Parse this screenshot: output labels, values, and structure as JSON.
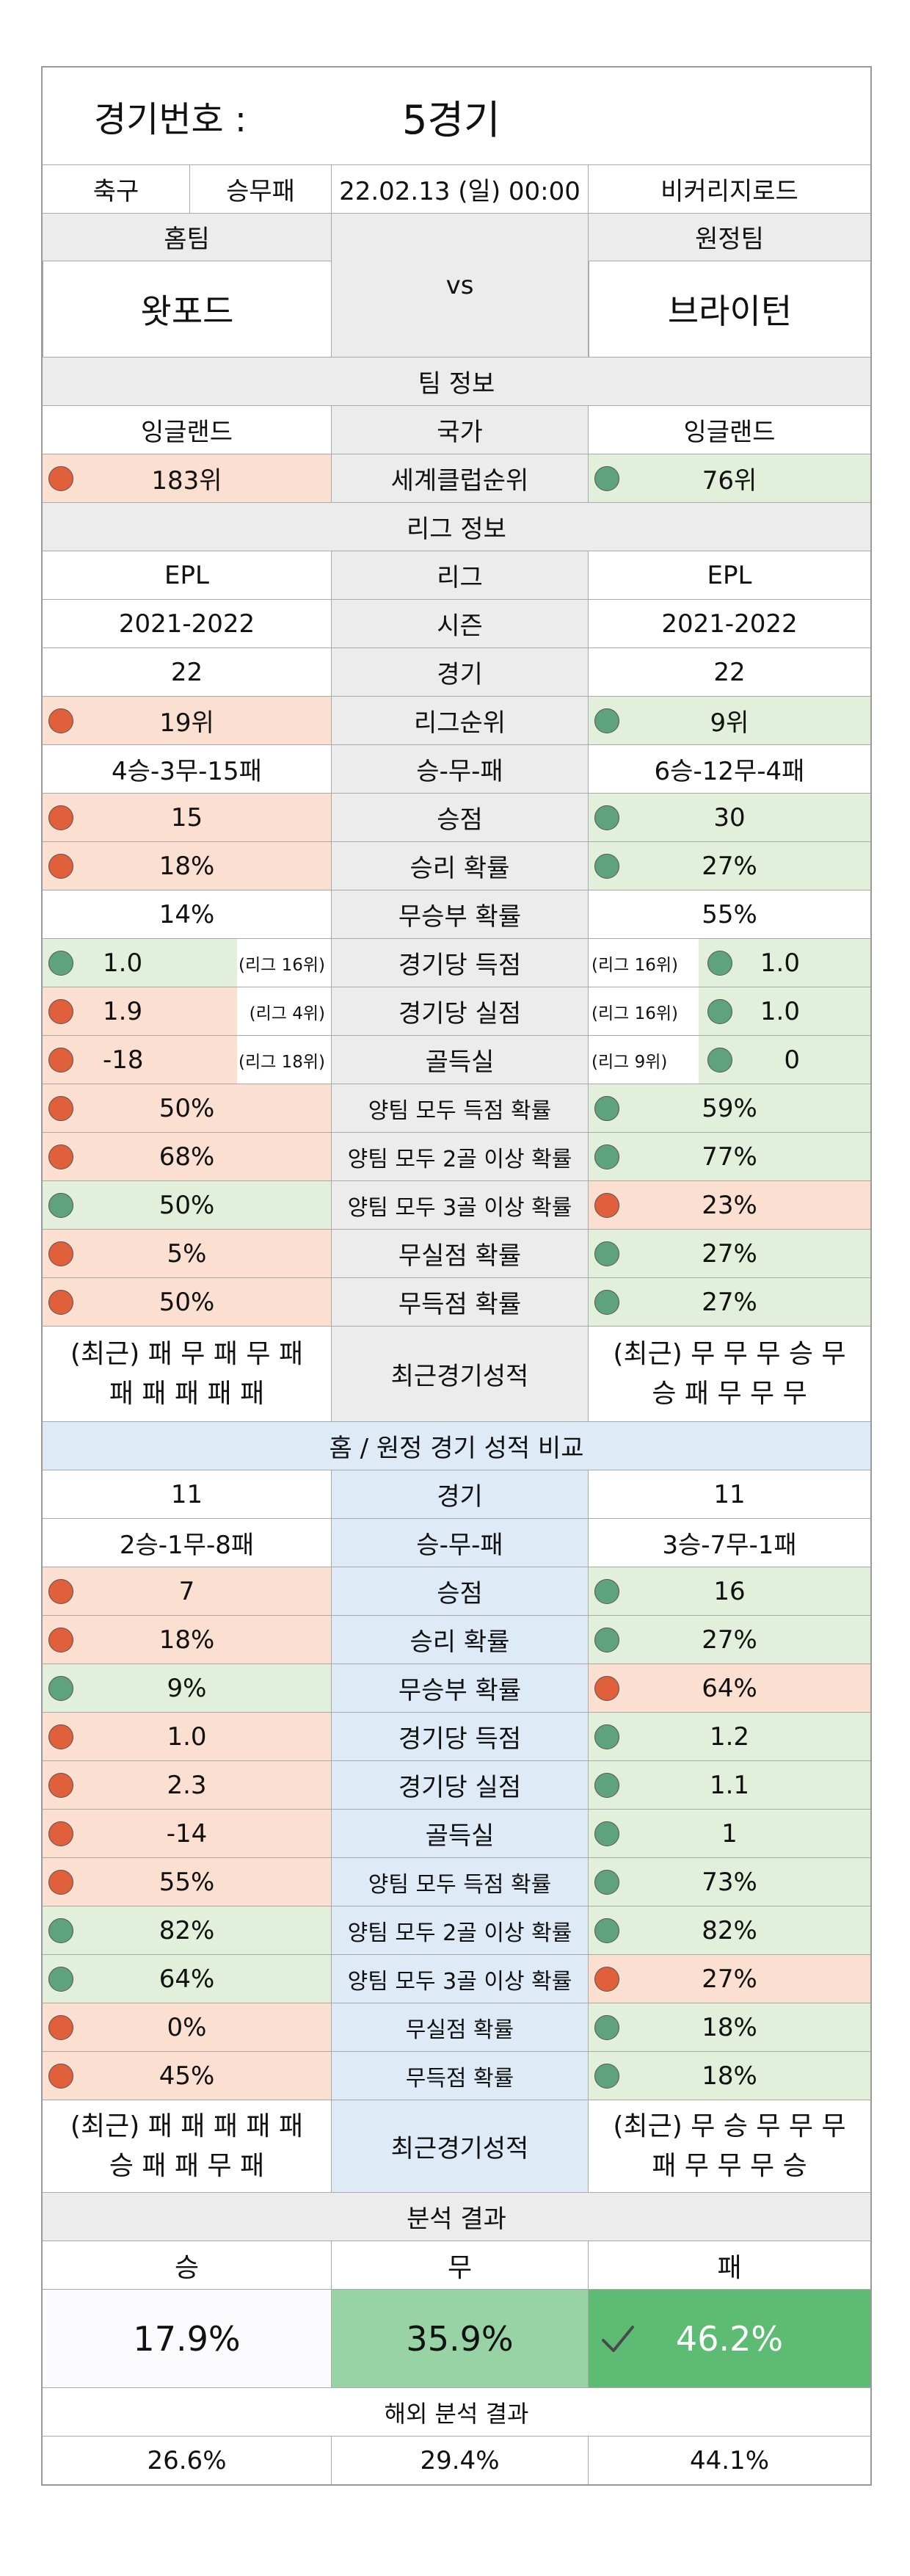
{
  "header": {
    "label": "경기번호 :",
    "value": "5경기",
    "sport": "축구",
    "bet_type": "승무패",
    "datetime": "22.02.13 (일) 00:00",
    "venue": "비커리지로드"
  },
  "teams": {
    "home_label": "홈팀",
    "away_label": "원정팀",
    "vs": "vs",
    "home_name": "왓포드",
    "away_name": "브라이턴"
  },
  "team_info": {
    "title": "팀 정보",
    "rows": [
      {
        "label": "국가",
        "home": "잉글랜드",
        "away": "잉글랜드"
      },
      {
        "label": "세계클럽순위",
        "home": "183위",
        "away": "76위"
      }
    ]
  },
  "league_info": {
    "title": "리그 정보",
    "rows": [
      {
        "label": "리그",
        "home": "EPL",
        "away": "EPL"
      },
      {
        "label": "시즌",
        "home": "2021-2022",
        "away": "2021-2022"
      },
      {
        "label": "경기",
        "home": "22",
        "away": "22"
      },
      {
        "label": "리그순위",
        "home": "19위",
        "away": "9위"
      },
      {
        "label": "승-무-패",
        "home": "4승-3무-15패",
        "away": "6승-12무-4패"
      },
      {
        "label": "승점",
        "home": "15",
        "away": "30"
      },
      {
        "label": "승리 확률",
        "home": "18%",
        "away": "27%"
      },
      {
        "label": "무승부 확률",
        "home": "14%",
        "away": "55%"
      },
      {
        "label": "경기당 득점",
        "home": "1.0",
        "home_rank": "(리그 16위)",
        "away": "1.0",
        "away_rank": "(리그 16위)"
      },
      {
        "label": "경기당 실점",
        "home": "1.9",
        "home_rank": "(리그 4위)",
        "away": "1.0",
        "away_rank": "(리그 16위)"
      },
      {
        "label": "골득실",
        "home": "-18",
        "home_rank": "(리그 18위)",
        "away": "0",
        "away_rank": "(리그 9위)"
      },
      {
        "label": "양팀 모두 득점 확률",
        "home": "50%",
        "away": "59%"
      },
      {
        "label": "양팀 모두 2골 이상 확률",
        "home": "68%",
        "away": "77%"
      },
      {
        "label": "양팀 모두 3골 이상 확률",
        "home": "50%",
        "away": "23%"
      },
      {
        "label": "무실점 확률",
        "home": "5%",
        "away": "27%"
      },
      {
        "label": "무득점 확률",
        "home": "50%",
        "away": "27%"
      }
    ],
    "recent": {
      "label": "최근경기성적",
      "home_line1": "(최근) 패 무 패 무 패",
      "home_line2": "패 패 패 패 패",
      "away_line1": "(최근) 무 무 무 승 무",
      "away_line2": "승 패 무 무 무"
    }
  },
  "home_away": {
    "title": "홈 / 원정 경기 성적 비교",
    "rows": [
      {
        "label": "경기",
        "home": "11",
        "away": "11"
      },
      {
        "label": "승-무-패",
        "home": "2승-1무-8패",
        "away": "3승-7무-1패"
      },
      {
        "label": "승점",
        "home": "7",
        "away": "16"
      },
      {
        "label": "승리 확률",
        "home": "18%",
        "away": "27%"
      },
      {
        "label": "무승부 확률",
        "home": "9%",
        "away": "64%"
      },
      {
        "label": "경기당 득점",
        "home": "1.0",
        "away": "1.2"
      },
      {
        "label": "경기당 실점",
        "home": "2.3",
        "away": "1.1"
      },
      {
        "label": "골득실",
        "home": "-14",
        "away": "1"
      },
      {
        "label": "양팀 모두 득점 확률",
        "home": "55%",
        "away": "73%"
      },
      {
        "label": "양팀 모두 2골 이상 확률",
        "home": "82%",
        "away": "82%"
      },
      {
        "label": "양팀 모두 3골 이상 확률",
        "home": "64%",
        "away": "27%"
      },
      {
        "label": "무실점 확률",
        "home": "0%",
        "away": "18%"
      },
      {
        "label": "무득점 확률",
        "home": "45%",
        "away": "18%"
      }
    ],
    "recent": {
      "label": "최근경기성적",
      "home_line1": "(최근) 패 패 패 패 패",
      "home_line2": "승 패 패 무 패",
      "away_line1": "(최근) 무 승 무 무 무",
      "away_line2": "패 무 무 무 승"
    }
  },
  "analysis": {
    "title": "분석 결과",
    "win_label": "승",
    "draw_label": "무",
    "loss_label": "패",
    "win": "17.9%",
    "draw": "35.9%",
    "loss": "46.2%",
    "overseas_title": "해외 분석 결과",
    "overseas_win": "26.6%",
    "overseas_draw": "29.4%",
    "overseas_loss": "44.1%"
  },
  "colors": {
    "worse": "#fbe0d2",
    "better": "#e2efda",
    "section_gray": "#ececec",
    "section_blue": "#deebf7",
    "dot_red": "#e0603c",
    "dot_green": "#5fa37c",
    "draw_cell": "#97d3a5",
    "loss_cell": "#5dbb74"
  }
}
